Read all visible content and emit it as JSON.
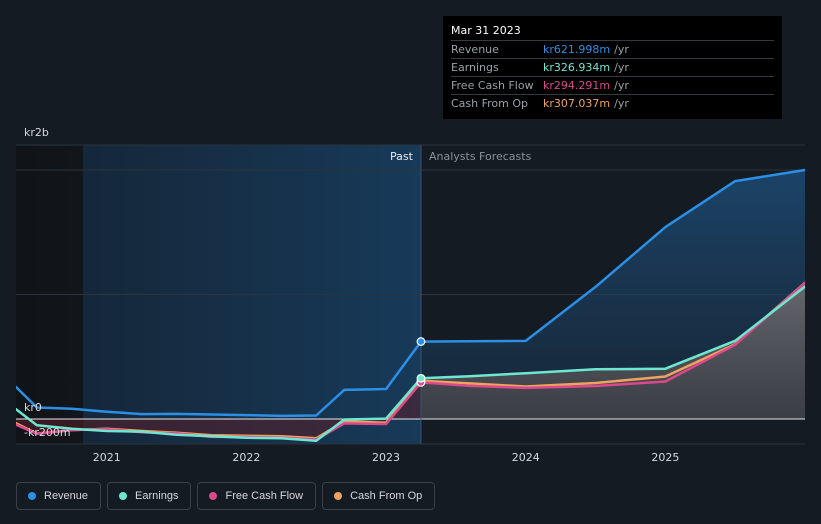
{
  "chart_data": {
    "type": "line",
    "x_ticks": [
      "2021",
      "2022",
      "2023",
      "2024",
      "2025"
    ],
    "y_ticks": [
      {
        "label": "kr2b",
        "value": 2000
      },
      {
        "label": "kr0",
        "value": 0
      },
      {
        "label": "-kr200m",
        "value": -200
      }
    ],
    "ylim": [
      -200,
      2000
    ],
    "xlim": [
      2020.35,
      2026.0
    ],
    "past_label": "Past",
    "forecast_label": "Analysts Forecasts",
    "highlight_start": 2020.83,
    "split_x": 2023.25,
    "series": [
      {
        "name": "Revenue",
        "color": "#2b8fe6",
        "points": [
          [
            2020.35,
            257
          ],
          [
            2020.5,
            92
          ],
          [
            2020.75,
            82
          ],
          [
            2021.0,
            59
          ],
          [
            2021.25,
            39
          ],
          [
            2021.5,
            41
          ],
          [
            2021.75,
            36
          ],
          [
            2022.0,
            31
          ],
          [
            2022.25,
            25
          ],
          [
            2022.5,
            28
          ],
          [
            2022.7,
            234
          ],
          [
            2023.0,
            241
          ],
          [
            2023.25,
            622
          ],
          [
            2023.6,
            625
          ],
          [
            2024.0,
            627
          ],
          [
            2024.5,
            1061
          ],
          [
            2025.0,
            1541
          ],
          [
            2025.5,
            1911
          ],
          [
            2026.0,
            2000
          ]
        ]
      },
      {
        "name": "Earnings",
        "color": "#6ee7d2",
        "points": [
          [
            2020.35,
            79
          ],
          [
            2020.5,
            -50
          ],
          [
            2020.75,
            -79
          ],
          [
            2021.0,
            -96
          ],
          [
            2021.25,
            -101
          ],
          [
            2021.5,
            -127
          ],
          [
            2021.75,
            -138
          ],
          [
            2022.0,
            -150
          ],
          [
            2022.25,
            -155
          ],
          [
            2022.5,
            -174
          ],
          [
            2022.7,
            -4
          ],
          [
            2023.0,
            3
          ],
          [
            2023.25,
            327
          ],
          [
            2023.6,
            343
          ],
          [
            2024.0,
            368
          ],
          [
            2024.5,
            399
          ],
          [
            2025.0,
            404
          ],
          [
            2025.5,
            628
          ],
          [
            2026.0,
            1064
          ]
        ]
      },
      {
        "name": "Free Cash Flow",
        "color": "#d9498b",
        "points": [
          [
            2020.35,
            -45
          ],
          [
            2020.5,
            -119
          ],
          [
            2020.75,
            -88
          ],
          [
            2021.0,
            -83
          ],
          [
            2021.25,
            -106
          ],
          [
            2021.5,
            -116
          ],
          [
            2021.75,
            -144
          ],
          [
            2022.0,
            -144
          ],
          [
            2022.25,
            -150
          ],
          [
            2022.5,
            -165
          ],
          [
            2022.7,
            -35
          ],
          [
            2023.0,
            -40
          ],
          [
            2023.25,
            294
          ],
          [
            2023.6,
            266
          ],
          [
            2024.0,
            250
          ],
          [
            2024.5,
            265
          ],
          [
            2025.0,
            301
          ],
          [
            2025.5,
            596
          ],
          [
            2026.0,
            1093
          ]
        ]
      },
      {
        "name": "Cash From Op",
        "color": "#f0a35e",
        "points": [
          [
            2020.35,
            -34
          ],
          [
            2020.5,
            -117
          ],
          [
            2020.75,
            -89
          ],
          [
            2021.0,
            -78
          ],
          [
            2021.25,
            -96
          ],
          [
            2021.5,
            -110
          ],
          [
            2021.75,
            -131
          ],
          [
            2022.0,
            -135
          ],
          [
            2022.25,
            -139
          ],
          [
            2022.5,
            -155
          ],
          [
            2022.7,
            -19
          ],
          [
            2023.0,
            -30
          ],
          [
            2023.25,
            307
          ],
          [
            2023.6,
            286
          ],
          [
            2024.0,
            261
          ],
          [
            2024.5,
            289
          ],
          [
            2025.0,
            341
          ],
          [
            2025.5,
            601
          ],
          [
            2026.0,
            1095
          ]
        ]
      }
    ]
  },
  "tooltip": {
    "date": "Mar 31 2023",
    "rows": [
      {
        "label": "Revenue",
        "value": "kr621.998m",
        "unit": "/yr",
        "color": "#2b8fe6"
      },
      {
        "label": "Earnings",
        "value": "kr326.934m",
        "unit": "/yr",
        "color": "#6ee7d2"
      },
      {
        "label": "Free Cash Flow",
        "value": "kr294.291m",
        "unit": "/yr",
        "color": "#d9498b"
      },
      {
        "label": "Cash From Op",
        "value": "kr307.037m",
        "unit": "/yr",
        "color": "#f0a35e"
      }
    ]
  },
  "legend": [
    {
      "label": "Revenue",
      "color": "#2b8fe6"
    },
    {
      "label": "Earnings",
      "color": "#6ee7d2"
    },
    {
      "label": "Free Cash Flow",
      "color": "#d9498b"
    },
    {
      "label": "Cash From Op",
      "color": "#f0a35e"
    }
  ]
}
